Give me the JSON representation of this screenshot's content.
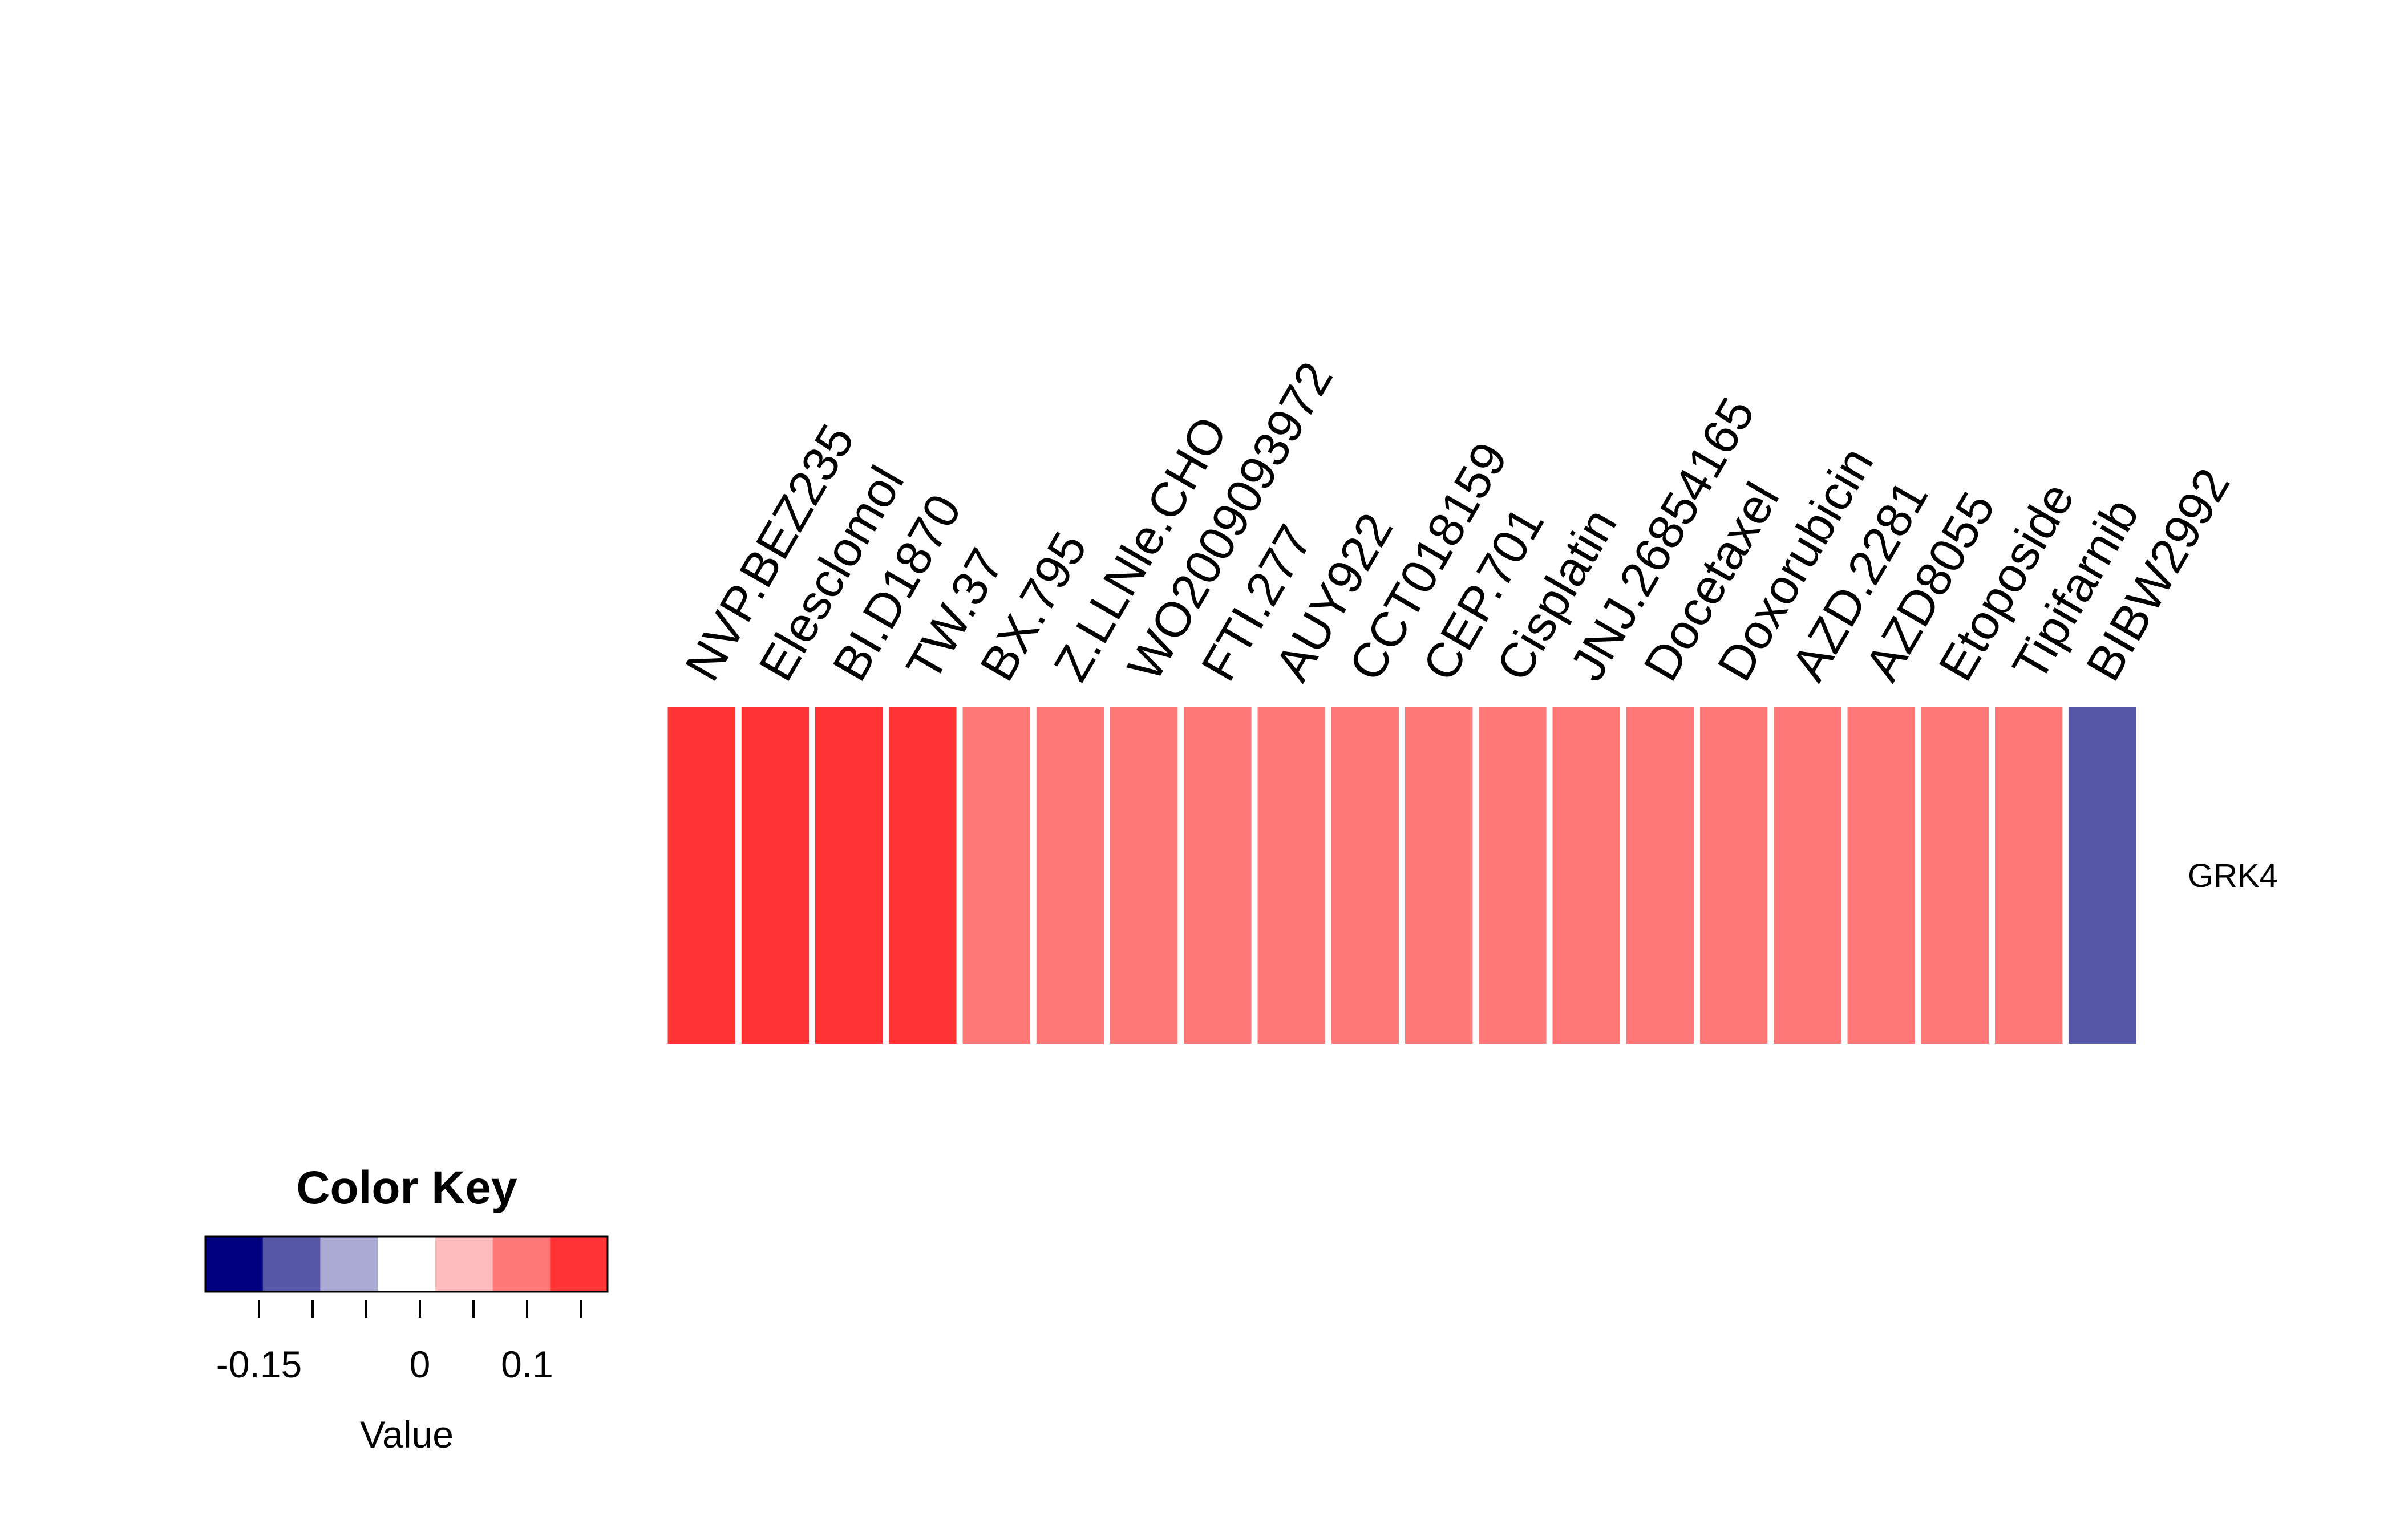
{
  "chart_data": {
    "type": "heatmap",
    "rows": [
      "GRK4"
    ],
    "columns": [
      "NVP.BEZ235",
      "Elesclomol",
      "BI.D1870",
      "TW.37",
      "BX.795",
      "Z.LLNle.CHO",
      "WO2009093972",
      "FTI.277",
      "AUY922",
      "CCT018159",
      "CEP.701",
      "Cisplatin",
      "JNJ.26854165",
      "Docetaxel",
      "Doxorubicin",
      "AZD.2281",
      "AZD8055",
      "Etoposide",
      "Tipifarnib",
      "BIBW2992"
    ],
    "values": [
      [
        0.14,
        0.14,
        0.14,
        0.14,
        0.09,
        0.09,
        0.09,
        0.09,
        0.09,
        0.09,
        0.09,
        0.09,
        0.09,
        0.09,
        0.09,
        0.09,
        0.09,
        0.09,
        0.09,
        -0.12
      ]
    ],
    "color_key": {
      "title": "Color Key",
      "xlabel": "Value",
      "range": [
        -0.2,
        0.175
      ],
      "bin_colors": [
        "#000080",
        "#5757a9",
        "#aaaad4",
        "#ffffff",
        "#ffbbbb",
        "#ff7777",
        "#ff3333"
      ],
      "tick_labels": [
        {
          "value": -0.15,
          "label": "-0.15"
        },
        {
          "value": 0,
          "label": "0"
        },
        {
          "value": 0.1,
          "label": "0.1"
        }
      ]
    }
  }
}
